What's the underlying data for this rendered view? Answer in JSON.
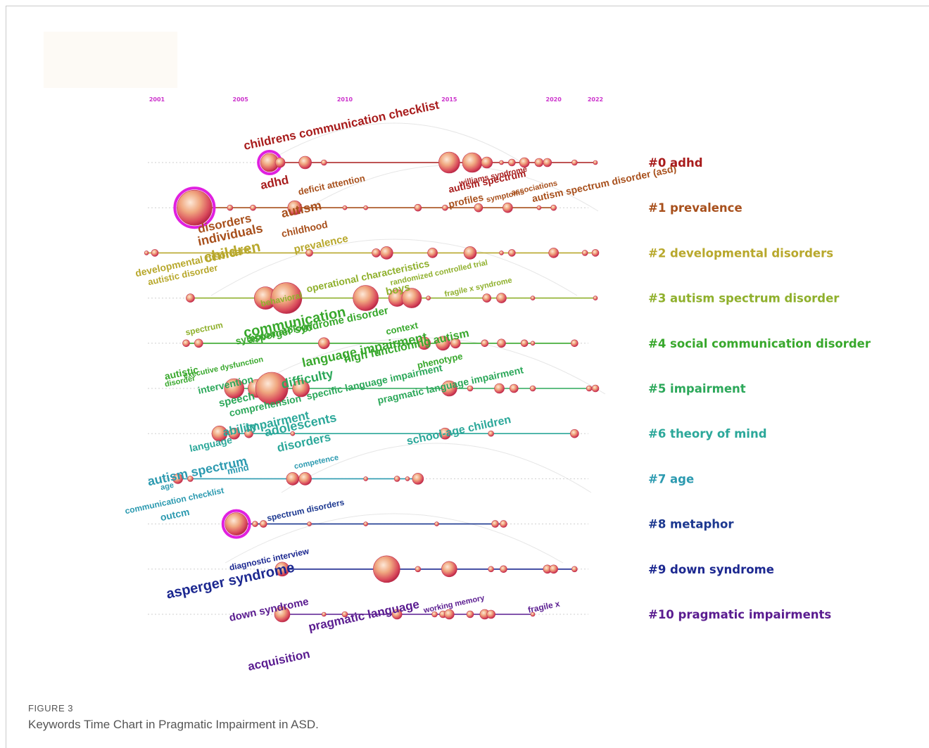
{
  "chart_data": {
    "type": "scatter",
    "timeline_ticks": [
      2001,
      2005,
      2010,
      2015,
      2020,
      2022
    ],
    "xlim": [
      2001,
      2022
    ],
    "clusters": [
      {
        "label": "#0 adhd",
        "color": "#a81c1c"
      },
      {
        "label": "#1 prevalence",
        "color": "#a8501c"
      },
      {
        "label": "#2 developmental disorders",
        "color": "#b8a82c"
      },
      {
        "label": "#3 autism spectrum disorder",
        "color": "#8fb02c"
      },
      {
        "label": "#4 social communication disorder",
        "color": "#38a82c"
      },
      {
        "label": "#5 impairment",
        "color": "#2ca85a"
      },
      {
        "label": "#6 theory of mind",
        "color": "#2ca89a"
      },
      {
        "label": "#7 age",
        "color": "#2c9ab0"
      },
      {
        "label": "#8 metaphor",
        "color": "#1c3890"
      },
      {
        "label": "#9 down syndrome",
        "color": "#1c2890"
      },
      {
        "label": "#10 pragmatic impairments",
        "color": "#5a1c90"
      }
    ],
    "keywords": [
      {
        "text": "childrens communication checklist",
        "cluster": 0,
        "year": 2005.2,
        "offset": -18,
        "size": 17,
        "angle": -12
      },
      {
        "text": "adhd",
        "cluster": 0,
        "year": 2006,
        "offset": 38,
        "size": 17,
        "angle": -12
      },
      {
        "text": "autism spectrum",
        "cluster": 0,
        "year": 2015,
        "offset": 43,
        "size": 14,
        "angle": -12
      },
      {
        "text": "williams syndrome",
        "cluster": 0,
        "year": 2015.5,
        "offset": 33,
        "size": 11,
        "angle": -12
      },
      {
        "text": "autism",
        "cluster": 1,
        "year": 2007,
        "offset": 14,
        "size": 18,
        "angle": -12
      },
      {
        "text": "deficit attention",
        "cluster": 1,
        "year": 2007.8,
        "offset": -18,
        "size": 13,
        "angle": -12
      },
      {
        "text": "profiles",
        "cluster": 1,
        "year": 2015,
        "offset": 0,
        "size": 14,
        "angle": -12
      },
      {
        "text": "symptoms",
        "cluster": 1,
        "year": 2016.8,
        "offset": -8,
        "size": 11,
        "angle": -12
      },
      {
        "text": "associations",
        "cluster": 1,
        "year": 2018,
        "offset": -18,
        "size": 11,
        "angle": -12
      },
      {
        "text": "autism spectrum disorder (asd)",
        "cluster": 1,
        "year": 2019,
        "offset": -8,
        "size": 14,
        "angle": -12
      },
      {
        "text": "disorders",
        "cluster": 1,
        "year": 2003,
        "offset": 36,
        "size": 17,
        "angle": -12
      },
      {
        "text": "individuals",
        "cluster": 1,
        "year": 2003,
        "offset": 54,
        "size": 18,
        "angle": -12
      },
      {
        "text": "childhood",
        "cluster": 1,
        "year": 2007,
        "offset": 42,
        "size": 14,
        "angle": -12
      },
      {
        "text": "prevalence",
        "cluster": 2,
        "year": 2007.6,
        "offset": 0,
        "size": 15,
        "angle": -12
      },
      {
        "text": "children",
        "cluster": 2,
        "year": 2003.3,
        "offset": 14,
        "size": 21,
        "angle": -12
      },
      {
        "text": "developmental disorders",
        "cluster": 2,
        "year": 2000,
        "offset": 34,
        "size": 14,
        "angle": -12
      },
      {
        "text": "autistic disorder",
        "cluster": 2,
        "year": 2000.6,
        "offset": 46,
        "size": 13,
        "angle": -12
      },
      {
        "text": "behavioral",
        "cluster": 3,
        "year": 2006,
        "offset": 12,
        "size": 12,
        "angle": -12
      },
      {
        "text": "operational characteristics",
        "cluster": 3,
        "year": 2008.2,
        "offset": -8,
        "size": 14,
        "angle": -12
      },
      {
        "text": "randomized controlled trial",
        "cluster": 3,
        "year": 2012.2,
        "offset": -18,
        "size": 11,
        "angle": -12
      },
      {
        "text": "boys",
        "cluster": 3,
        "year": 2012,
        "offset": -4,
        "size": 15,
        "angle": -12
      },
      {
        "text": "fragile x syndrome",
        "cluster": 3,
        "year": 2014.8,
        "offset": -2,
        "size": 11,
        "angle": -12
      },
      {
        "text": "spectrum",
        "cluster": 3,
        "year": 2002.4,
        "offset": 53,
        "size": 12,
        "angle": -12
      },
      {
        "text": "communication",
        "cluster": 4,
        "year": 2005.2,
        "offset": -8,
        "size": 20,
        "angle": -12
      },
      {
        "text": "symptomatology",
        "cluster": 4,
        "year": 2004.8,
        "offset": 2,
        "size": 14,
        "angle": -12
      },
      {
        "text": "asperger syndrome disorder",
        "cluster": 4,
        "year": 2005.4,
        "offset": 0,
        "size": 15,
        "angle": -12
      },
      {
        "text": "context",
        "cluster": 4,
        "year": 2012,
        "offset": -12,
        "size": 13,
        "angle": -12
      },
      {
        "text": "language impairment",
        "cluster": 4,
        "year": 2008,
        "offset": 34,
        "size": 18,
        "angle": -12
      },
      {
        "text": "high functioning autism",
        "cluster": 4,
        "year": 2010,
        "offset": 28,
        "size": 16,
        "angle": -12
      },
      {
        "text": "autistic",
        "cluster": 4,
        "year": 2001.4,
        "offset": 52,
        "size": 14,
        "angle": -12
      },
      {
        "text": "executive dysfunction",
        "cluster": 4,
        "year": 2002.3,
        "offset": 50,
        "size": 11,
        "angle": -12
      },
      {
        "text": "disorder",
        "cluster": 4,
        "year": 2001.4,
        "offset": 62,
        "size": 11,
        "angle": -12
      },
      {
        "text": "phenotype",
        "cluster": 4,
        "year": 2013.5,
        "offset": 36,
        "size": 13,
        "angle": -12
      },
      {
        "text": "intervention",
        "cluster": 5,
        "year": 2003,
        "offset": 8,
        "size": 14,
        "angle": -12
      },
      {
        "text": "speech",
        "cluster": 5,
        "year": 2004,
        "offset": 26,
        "size": 15,
        "angle": -12
      },
      {
        "text": "difficulty",
        "cluster": 5,
        "year": 2007,
        "offset": 0,
        "size": 18,
        "angle": -12
      },
      {
        "text": "specific language impairment",
        "cluster": 5,
        "year": 2008.2,
        "offset": 16,
        "size": 14,
        "angle": -12
      },
      {
        "text": "pragmatic language impairment",
        "cluster": 5,
        "year": 2011.6,
        "offset": 22,
        "size": 14,
        "angle": -12
      },
      {
        "text": "comprehension",
        "cluster": 5,
        "year": 2004.5,
        "offset": 40,
        "size": 14,
        "angle": -12
      },
      {
        "text": "ability",
        "cluster": 6,
        "year": 2004.2,
        "offset": 4,
        "size": 17,
        "angle": -12
      },
      {
        "text": "impairment",
        "cluster": 6,
        "year": 2005.3,
        "offset": -2,
        "size": 17,
        "angle": -12
      },
      {
        "text": "adolescents",
        "cluster": 6,
        "year": 2006.2,
        "offset": 4,
        "size": 18,
        "angle": -12
      },
      {
        "text": "disorders",
        "cluster": 6,
        "year": 2006.8,
        "offset": 26,
        "size": 17,
        "angle": -12
      },
      {
        "text": "language",
        "cluster": 6,
        "year": 2002.6,
        "offset": 26,
        "size": 14,
        "angle": -12
      },
      {
        "text": "school-age children",
        "cluster": 6,
        "year": 2013,
        "offset": 16,
        "size": 16,
        "angle": -12
      },
      {
        "text": "autism spectrum",
        "cluster": 7,
        "year": 2000.6,
        "offset": 10,
        "size": 18,
        "angle": -12
      },
      {
        "text": "mind",
        "cluster": 7,
        "year": 2004.4,
        "offset": -6,
        "size": 13,
        "angle": -12
      },
      {
        "text": "competence",
        "cluster": 7,
        "year": 2007.6,
        "offset": -14,
        "size": 11,
        "angle": -12
      },
      {
        "text": "age",
        "cluster": 7,
        "year": 2001.2,
        "offset": 16,
        "size": 11,
        "angle": -12
      },
      {
        "text": "communication checklist",
        "cluster": 7,
        "year": 1999.5,
        "offset": 50,
        "size": 12,
        "angle": -12
      },
      {
        "text": "outcm",
        "cluster": 7,
        "year": 2001.2,
        "offset": 60,
        "size": 14,
        "angle": -12
      },
      {
        "text": "spectrum disorders",
        "cluster": 8,
        "year": 2006.3,
        "offset": -4,
        "size": 12,
        "angle": -12
      },
      {
        "text": "diagnostic interview",
        "cluster": 9,
        "year": 2004.5,
        "offset": 2,
        "size": 12,
        "angle": -12
      },
      {
        "text": "asperger syndrome",
        "cluster": 9,
        "year": 2001.5,
        "offset": 42,
        "size": 20,
        "angle": -12
      },
      {
        "text": "down syndrome",
        "cluster": 10,
        "year": 2004.5,
        "offset": 10,
        "size": 15,
        "angle": -12
      },
      {
        "text": "pragmatic language",
        "cluster": 10,
        "year": 2008.3,
        "offset": 24,
        "size": 17,
        "angle": -12
      },
      {
        "text": "working memory",
        "cluster": 10,
        "year": 2013.8,
        "offset": -2,
        "size": 11,
        "angle": -12
      },
      {
        "text": "fragile x",
        "cluster": 10,
        "year": 2018.8,
        "offset": -2,
        "size": 12,
        "angle": -12
      },
      {
        "text": "acquisition",
        "cluster": 10,
        "year": 2005.4,
        "offset": 80,
        "size": 17,
        "angle": -12
      }
    ],
    "nodes": [
      {
        "cluster": 0,
        "year": 2006.4,
        "r": 13,
        "ring": true
      },
      {
        "cluster": 0,
        "year": 2006.9,
        "r": 7
      },
      {
        "cluster": 0,
        "year": 2008.1,
        "r": 9
      },
      {
        "cluster": 0,
        "year": 2009,
        "r": 4
      },
      {
        "cluster": 0,
        "year": 2015,
        "r": 15
      },
      {
        "cluster": 0,
        "year": 2016.1,
        "r": 14
      },
      {
        "cluster": 0,
        "year": 2016.8,
        "r": 8
      },
      {
        "cluster": 0,
        "year": 2017.5,
        "r": 3
      },
      {
        "cluster": 0,
        "year": 2018,
        "r": 5
      },
      {
        "cluster": 0,
        "year": 2018.6,
        "r": 7
      },
      {
        "cluster": 0,
        "year": 2019.3,
        "r": 6
      },
      {
        "cluster": 0,
        "year": 2019.7,
        "r": 6
      },
      {
        "cluster": 0,
        "year": 2021,
        "r": 4
      },
      {
        "cluster": 0,
        "year": 2022,
        "r": 3
      },
      {
        "cluster": 1,
        "year": 2002.8,
        "r": 25,
        "ring": true
      },
      {
        "cluster": 1,
        "year": 2004.5,
        "r": 4
      },
      {
        "cluster": 1,
        "year": 2005.6,
        "r": 4
      },
      {
        "cluster": 1,
        "year": 2007.6,
        "r": 10
      },
      {
        "cluster": 1,
        "year": 2010,
        "r": 3
      },
      {
        "cluster": 1,
        "year": 2011,
        "r": 3
      },
      {
        "cluster": 1,
        "year": 2013.5,
        "r": 5
      },
      {
        "cluster": 1,
        "year": 2014.8,
        "r": 4
      },
      {
        "cluster": 1,
        "year": 2016.4,
        "r": 6
      },
      {
        "cluster": 1,
        "year": 2017.8,
        "r": 7
      },
      {
        "cluster": 1,
        "year": 2019.3,
        "r": 3
      },
      {
        "cluster": 1,
        "year": 2020,
        "r": 4
      },
      {
        "cluster": 2,
        "year": 2000.5,
        "r": 3
      },
      {
        "cluster": 2,
        "year": 2000.9,
        "r": 5
      },
      {
        "cluster": 2,
        "year": 2008.3,
        "r": 5
      },
      {
        "cluster": 2,
        "year": 2011.5,
        "r": 6
      },
      {
        "cluster": 2,
        "year": 2012,
        "r": 9
      },
      {
        "cluster": 2,
        "year": 2014.2,
        "r": 7
      },
      {
        "cluster": 2,
        "year": 2016,
        "r": 9
      },
      {
        "cluster": 2,
        "year": 2017.5,
        "r": 3
      },
      {
        "cluster": 2,
        "year": 2018,
        "r": 5
      },
      {
        "cluster": 2,
        "year": 2020,
        "r": 7
      },
      {
        "cluster": 2,
        "year": 2021.5,
        "r": 4
      },
      {
        "cluster": 2,
        "year": 2022,
        "r": 5
      },
      {
        "cluster": 3,
        "year": 2002.6,
        "r": 6
      },
      {
        "cluster": 3,
        "year": 2006.2,
        "r": 16
      },
      {
        "cluster": 3,
        "year": 2007.2,
        "r": 22
      },
      {
        "cluster": 3,
        "year": 2011,
        "r": 18
      },
      {
        "cluster": 3,
        "year": 2012.5,
        "r": 12
      },
      {
        "cluster": 3,
        "year": 2013.2,
        "r": 14
      },
      {
        "cluster": 3,
        "year": 2014,
        "r": 3
      },
      {
        "cluster": 3,
        "year": 2016.8,
        "r": 6
      },
      {
        "cluster": 3,
        "year": 2017.5,
        "r": 7
      },
      {
        "cluster": 3,
        "year": 2019,
        "r": 3
      },
      {
        "cluster": 3,
        "year": 2022,
        "r": 3
      },
      {
        "cluster": 4,
        "year": 2002.4,
        "r": 5
      },
      {
        "cluster": 4,
        "year": 2003,
        "r": 6
      },
      {
        "cluster": 4,
        "year": 2009,
        "r": 8
      },
      {
        "cluster": 4,
        "year": 2013.8,
        "r": 9
      },
      {
        "cluster": 4,
        "year": 2014.7,
        "r": 10
      },
      {
        "cluster": 4,
        "year": 2015.3,
        "r": 7
      },
      {
        "cluster": 4,
        "year": 2016.7,
        "r": 5
      },
      {
        "cluster": 4,
        "year": 2017.5,
        "r": 6
      },
      {
        "cluster": 4,
        "year": 2018.6,
        "r": 5
      },
      {
        "cluster": 4,
        "year": 2019,
        "r": 3
      },
      {
        "cluster": 4,
        "year": 2021,
        "r": 5
      },
      {
        "cluster": 5,
        "year": 2004.7,
        "r": 14
      },
      {
        "cluster": 5,
        "year": 2005.8,
        "r": 13
      },
      {
        "cluster": 5,
        "year": 2006.5,
        "r": 23
      },
      {
        "cluster": 5,
        "year": 2007.9,
        "r": 12
      },
      {
        "cluster": 5,
        "year": 2015,
        "r": 11
      },
      {
        "cluster": 5,
        "year": 2016,
        "r": 4
      },
      {
        "cluster": 5,
        "year": 2017.4,
        "r": 7
      },
      {
        "cluster": 5,
        "year": 2018.1,
        "r": 6
      },
      {
        "cluster": 5,
        "year": 2019,
        "r": 4
      },
      {
        "cluster": 5,
        "year": 2021.7,
        "r": 4
      },
      {
        "cluster": 5,
        "year": 2022,
        "r": 5
      },
      {
        "cluster": 6,
        "year": 2004,
        "r": 11
      },
      {
        "cluster": 6,
        "year": 2004.7,
        "r": 8
      },
      {
        "cluster": 6,
        "year": 2005.4,
        "r": 6
      },
      {
        "cluster": 6,
        "year": 2007.5,
        "r": 3
      },
      {
        "cluster": 6,
        "year": 2014.8,
        "r": 8
      },
      {
        "cluster": 6,
        "year": 2017,
        "r": 4
      },
      {
        "cluster": 6,
        "year": 2021,
        "r": 6
      },
      {
        "cluster": 7,
        "year": 2002,
        "r": 7
      },
      {
        "cluster": 7,
        "year": 2002.6,
        "r": 4
      },
      {
        "cluster": 7,
        "year": 2007.5,
        "r": 9
      },
      {
        "cluster": 7,
        "year": 2008.1,
        "r": 9
      },
      {
        "cluster": 7,
        "year": 2011,
        "r": 3
      },
      {
        "cluster": 7,
        "year": 2012.5,
        "r": 4
      },
      {
        "cluster": 7,
        "year": 2013,
        "r": 3
      },
      {
        "cluster": 7,
        "year": 2013.5,
        "r": 8
      },
      {
        "cluster": 8,
        "year": 2004.8,
        "r": 16,
        "ring": true
      },
      {
        "cluster": 8,
        "year": 2005.7,
        "r": 4
      },
      {
        "cluster": 8,
        "year": 2006.1,
        "r": 5
      },
      {
        "cluster": 8,
        "year": 2008.3,
        "r": 3
      },
      {
        "cluster": 8,
        "year": 2011,
        "r": 3
      },
      {
        "cluster": 8,
        "year": 2014.4,
        "r": 3
      },
      {
        "cluster": 8,
        "year": 2017.2,
        "r": 5
      },
      {
        "cluster": 8,
        "year": 2017.6,
        "r": 5
      },
      {
        "cluster": 9,
        "year": 2007,
        "r": 10
      },
      {
        "cluster": 9,
        "year": 2012,
        "r": 19
      },
      {
        "cluster": 9,
        "year": 2013.5,
        "r": 4
      },
      {
        "cluster": 9,
        "year": 2015,
        "r": 11
      },
      {
        "cluster": 9,
        "year": 2017,
        "r": 4
      },
      {
        "cluster": 9,
        "year": 2017.6,
        "r": 5
      },
      {
        "cluster": 9,
        "year": 2019.7,
        "r": 6
      },
      {
        "cluster": 9,
        "year": 2020,
        "r": 6
      },
      {
        "cluster": 9,
        "year": 2021,
        "r": 4
      },
      {
        "cluster": 10,
        "year": 2007,
        "r": 11
      },
      {
        "cluster": 10,
        "year": 2009,
        "r": 3
      },
      {
        "cluster": 10,
        "year": 2010,
        "r": 4
      },
      {
        "cluster": 10,
        "year": 2012.5,
        "r": 7
      },
      {
        "cluster": 10,
        "year": 2014.3,
        "r": 4
      },
      {
        "cluster": 10,
        "year": 2014.7,
        "r": 5
      },
      {
        "cluster": 10,
        "year": 2015,
        "r": 7
      },
      {
        "cluster": 10,
        "year": 2016,
        "r": 5
      },
      {
        "cluster": 10,
        "year": 2016.7,
        "r": 7
      },
      {
        "cluster": 10,
        "year": 2017,
        "r": 6
      },
      {
        "cluster": 10,
        "year": 2019,
        "r": 3
      }
    ]
  },
  "figure": {
    "number": "FIGURE 3",
    "caption": "Keywords Time Chart in Pragmatic Impairment in ASD."
  }
}
